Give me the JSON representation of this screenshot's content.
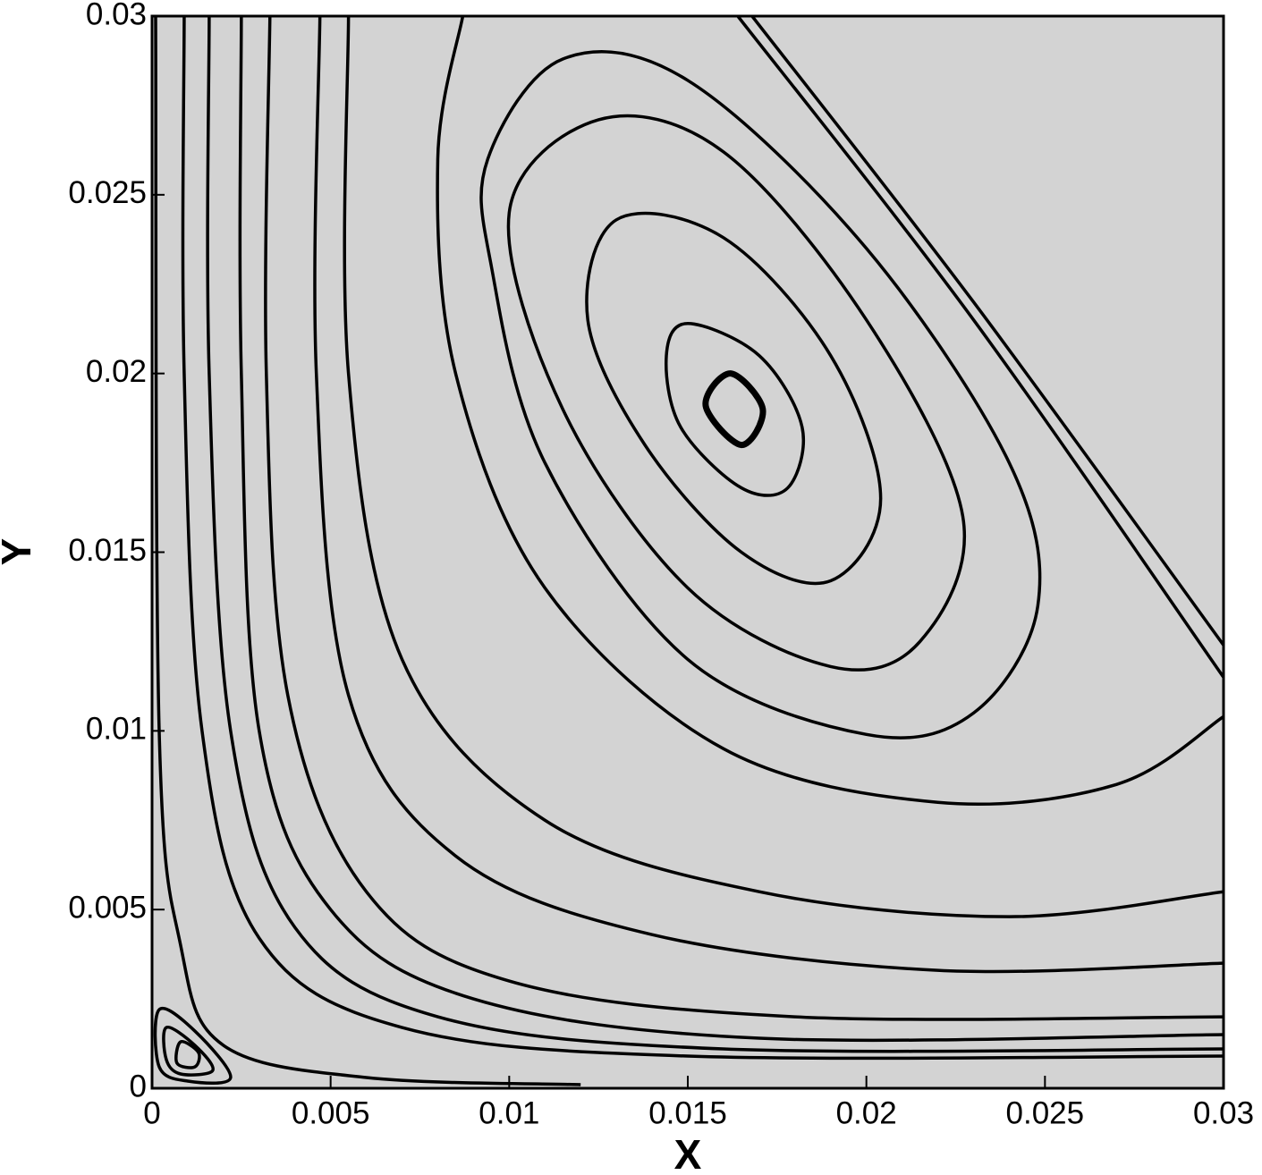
{
  "chart_data": {
    "type": "streamline",
    "x_label": "X",
    "y_label": "Y",
    "xlim": [
      0,
      0.03
    ],
    "ylim": [
      0,
      0.03
    ],
    "xticks": [
      0,
      0.005,
      0.01,
      0.015,
      0.02,
      0.025,
      0.03
    ],
    "yticks": [
      0,
      0.005,
      0.01,
      0.015,
      0.02,
      0.025,
      0.03
    ],
    "background": "#d3d3d3",
    "color": "#000000",
    "series": [
      {
        "closed": true,
        "x": [
          0.0162,
          0.0171,
          0.0165,
          0.0155
        ],
        "y": [
          0.02,
          0.019,
          0.018,
          0.0191
        ]
      },
      {
        "closed": true,
        "x": [
          0.015,
          0.017,
          0.0182,
          0.0178,
          0.0165,
          0.0148,
          0.0144
        ],
        "y": [
          0.0214,
          0.0205,
          0.0185,
          0.0168,
          0.0168,
          0.0185,
          0.0205
        ]
      },
      {
        "closed": true,
        "x": [
          0.013,
          0.016,
          0.019,
          0.0204,
          0.019,
          0.0165,
          0.0138,
          0.0122
        ],
        "y": [
          0.0243,
          0.0238,
          0.0205,
          0.0165,
          0.0142,
          0.015,
          0.018,
          0.0215
        ]
      },
      {
        "closed": true,
        "x": [
          0.01,
          0.0125,
          0.016,
          0.02,
          0.0227,
          0.0215,
          0.019,
          0.015,
          0.0115
        ],
        "y": [
          0.0245,
          0.0271,
          0.0262,
          0.0215,
          0.016,
          0.0125,
          0.0118,
          0.014,
          0.019
        ]
      },
      {
        "closed": true,
        "x": [
          0.0094,
          0.0115,
          0.015,
          0.02,
          0.024,
          0.0248,
          0.023,
          0.02,
          0.015,
          0.011,
          0.0095
        ],
        "y": [
          0.026,
          0.0288,
          0.0282,
          0.0235,
          0.0175,
          0.0135,
          0.0105,
          0.0099,
          0.012,
          0.0175,
          0.023
        ]
      },
      {
        "closed": false,
        "x": [
          0.0087,
          0.008,
          0.0085,
          0.011,
          0.016,
          0.022,
          0.027,
          0.03
        ],
        "y": [
          0.03,
          0.026,
          0.02,
          0.014,
          0.0095,
          0.008,
          0.0085,
          0.0104
        ]
      },
      {
        "closed": false,
        "x": [
          0.0055,
          0.0055,
          0.007,
          0.011,
          0.017,
          0.024,
          0.03
        ],
        "y": [
          0.03,
          0.02,
          0.012,
          0.0075,
          0.0055,
          0.0048,
          0.0055
        ]
      },
      {
        "closed": false,
        "x": [
          0.0047,
          0.0046,
          0.0055,
          0.0085,
          0.014,
          0.022,
          0.03
        ],
        "y": [
          0.03,
          0.02,
          0.011,
          0.0065,
          0.0043,
          0.0033,
          0.0035
        ]
      },
      {
        "closed": false,
        "x": [
          0.0033,
          0.0032,
          0.0038,
          0.006,
          0.01,
          0.018,
          0.03
        ],
        "y": [
          0.03,
          0.02,
          0.011,
          0.0055,
          0.003,
          0.002,
          0.002
        ]
      },
      {
        "closed": false,
        "x": [
          0.0025,
          0.0025,
          0.003,
          0.005,
          0.009,
          0.017,
          0.03
        ],
        "y": [
          0.03,
          0.02,
          0.01,
          0.005,
          0.0025,
          0.0014,
          0.0015
        ]
      },
      {
        "closed": false,
        "x": [
          0.0016,
          0.0016,
          0.0022,
          0.004,
          0.008,
          0.016,
          0.03
        ],
        "y": [
          0.03,
          0.02,
          0.01,
          0.0045,
          0.002,
          0.0011,
          0.0011
        ]
      },
      {
        "closed": false,
        "x": [
          0.0009,
          0.0009,
          0.0014,
          0.003,
          0.007,
          0.015,
          0.03
        ],
        "y": [
          0.03,
          0.02,
          0.01,
          0.0042,
          0.0017,
          0.0009,
          0.0009
        ]
      },
      {
        "closed": false,
        "x": [
          0.0001,
          0.0002,
          0.0008,
          0.002,
          0.006,
          0.012
        ],
        "y": [
          0.03,
          0.01,
          0.004,
          0.0012,
          0.0003,
          0.0001
        ]
      },
      {
        "closed": false,
        "x": [
          0.0168,
          0.023,
          0.03
        ],
        "y": [
          0.03,
          0.022,
          0.0124
        ]
      },
      {
        "closed": false,
        "x": [
          0.0164,
          0.023,
          0.03
        ],
        "y": [
          0.03,
          0.0215,
          0.0115
        ]
      },
      {
        "closed": true,
        "x": [
          0.0002,
          0.0012,
          0.0022,
          0.001,
          0.0002
        ],
        "y": [
          0.0022,
          0.0016,
          0.0003,
          0.0002,
          0.0006
        ]
      },
      {
        "closed": true,
        "x": [
          0.0004,
          0.0012,
          0.0017,
          0.0008,
          0.0004
        ],
        "y": [
          0.0017,
          0.0012,
          0.0005,
          0.0004,
          0.0008
        ]
      },
      {
        "closed": true,
        "x": [
          0.0008,
          0.0013,
          0.0012,
          0.0007
        ],
        "y": [
          0.0013,
          0.001,
          0.0006,
          0.0007
        ]
      }
    ]
  }
}
